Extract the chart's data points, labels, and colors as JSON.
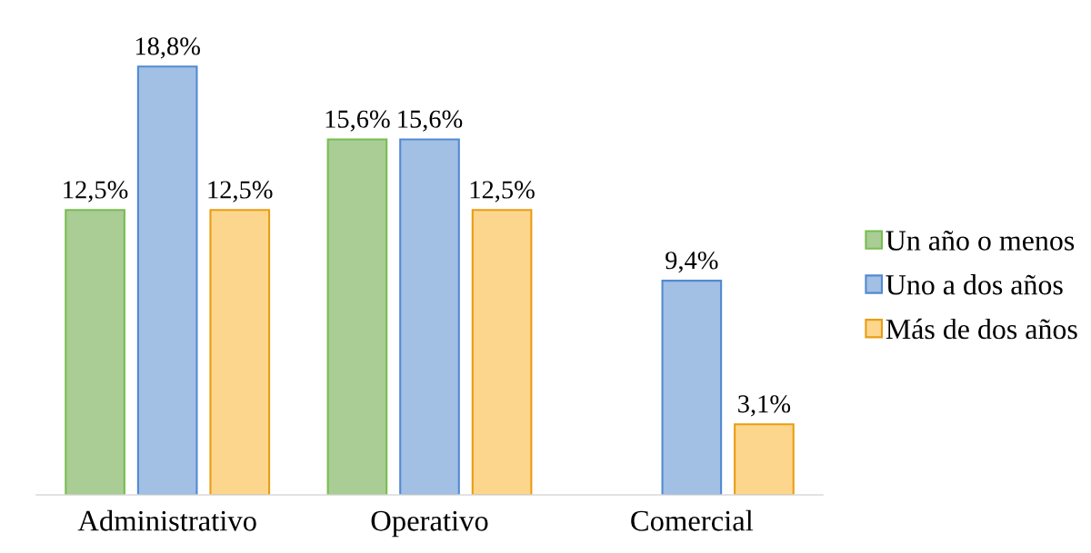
{
  "chart_data": {
    "type": "bar",
    "categories": [
      "Administrativo",
      "Operativo",
      "Comercial"
    ],
    "series": [
      {
        "name": "Un año o menos",
        "color": "#a9cd95",
        "values": [
          12.5,
          15.6,
          null
        ],
        "value_labels": [
          "12,5%",
          "15,6%",
          null
        ]
      },
      {
        "name": "Uno a dos años",
        "color": "#a2bfe4",
        "values": [
          18.8,
          15.6,
          9.4
        ],
        "value_labels": [
          "18,8%",
          "15,6%",
          "9,4%"
        ]
      },
      {
        "name": "Más de dos años",
        "color": "#fdd68e",
        "values": [
          12.5,
          12.5,
          3.1
        ],
        "value_labels": [
          "12,5%",
          "12,5%",
          "3,1%"
        ]
      }
    ],
    "tick_labels": "x",
    "legend": "right"
  }
}
